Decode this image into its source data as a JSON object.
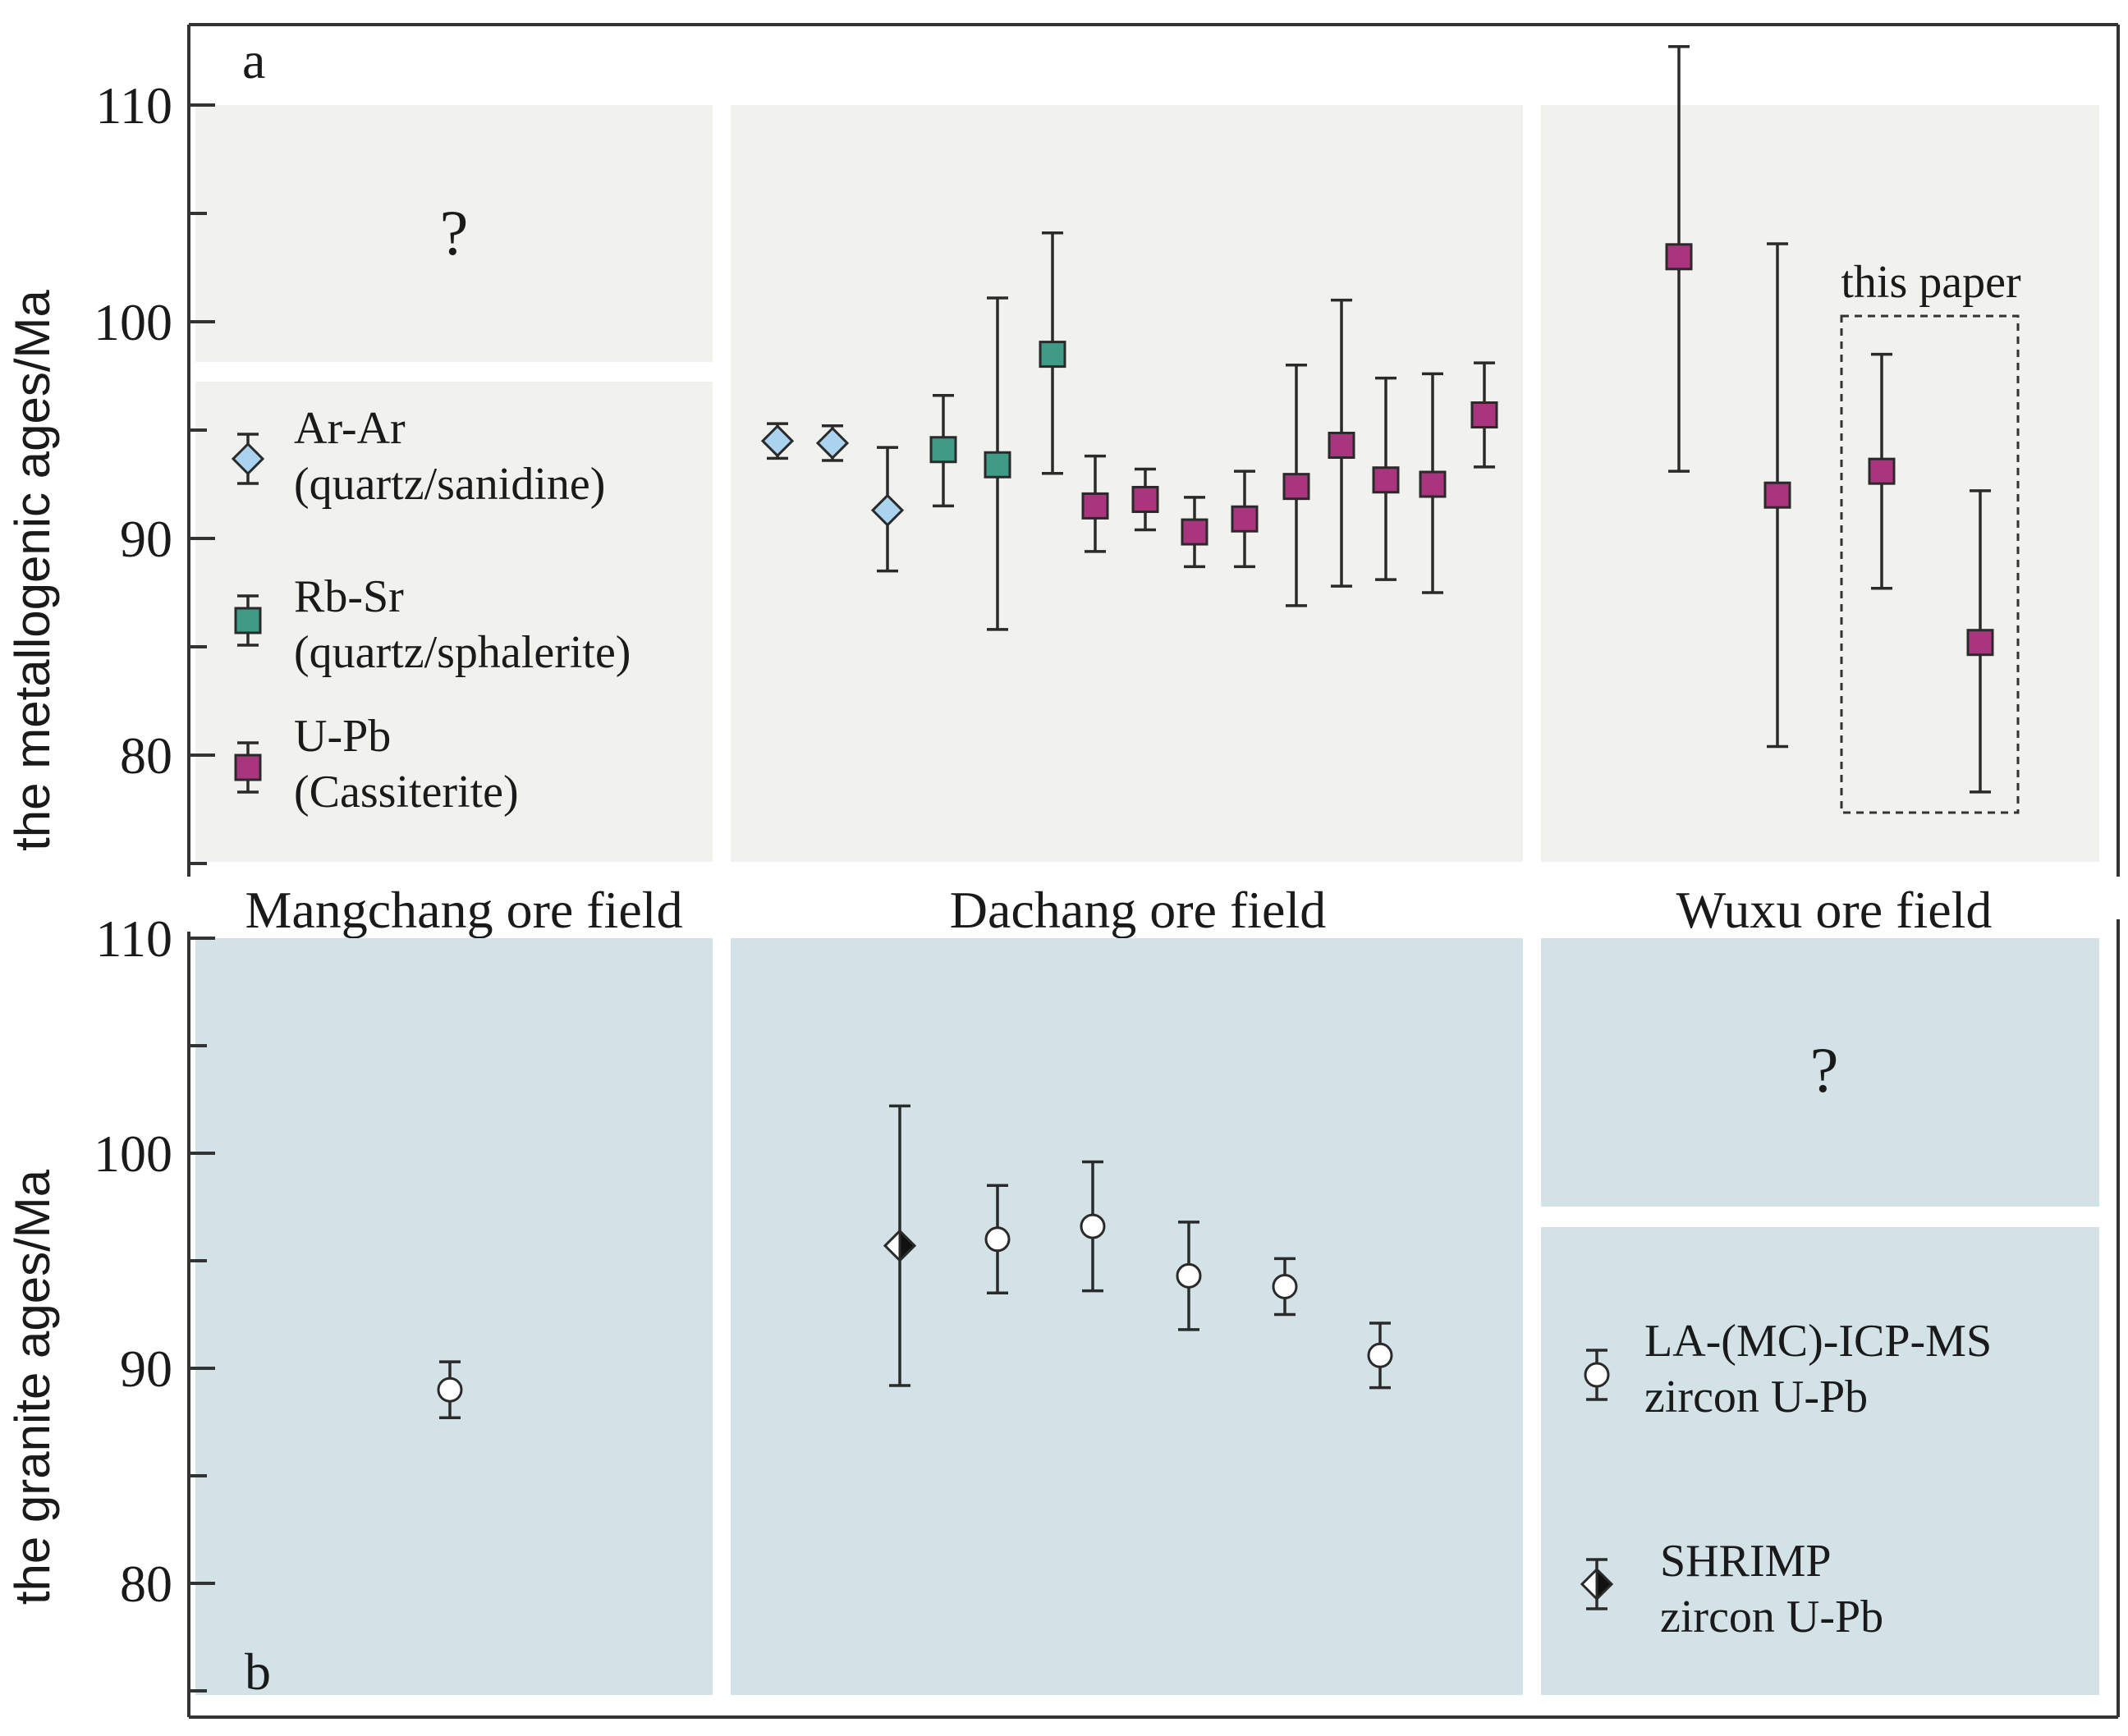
{
  "chart_data": [
    {
      "type": "scatter",
      "panel": "a",
      "ylabel": "the metallogenic ages/Ma",
      "ylim": [
        75,
        113
      ],
      "yticks": [
        80,
        90,
        100,
        110
      ],
      "grid": false,
      "sections": [
        {
          "name": "Mangchang ore field",
          "placeholder": "?"
        },
        {
          "name": "Dachang ore field"
        },
        {
          "name": "Wuxu ore field"
        }
      ],
      "legend": [
        {
          "label": "Ar-Ar",
          "sublabel": "(quartz/sanidine)",
          "marker": "diamond",
          "color": "#a9d3ee"
        },
        {
          "label": "Rb-Sr",
          "sublabel": "(quartz/sphalerite)",
          "marker": "square",
          "color": "#3f9a86"
        },
        {
          "label": "U-Pb",
          "sublabel": "(Cassiterite)",
          "marker": "square",
          "color": "#a8357d"
        }
      ],
      "annotation": "this paper",
      "series": [
        {
          "name": "Ar-Ar",
          "marker": "diamond",
          "color": "#a9d3ee",
          "section": "Dachang ore field",
          "points": [
            {
              "age": 94.5,
              "low": 93.7,
              "high": 95.3
            },
            {
              "age": 94.4,
              "low": 93.6,
              "high": 95.2
            },
            {
              "age": 91.3,
              "low": 88.5,
              "high": 94.2
            }
          ]
        },
        {
          "name": "Rb-Sr",
          "marker": "square",
          "color": "#3f9a86",
          "section": "Dachang ore field",
          "points": [
            {
              "age": 94.1,
              "low": 91.5,
              "high": 96.6
            },
            {
              "age": 93.4,
              "low": 85.8,
              "high": 101.1
            },
            {
              "age": 98.5,
              "low": 93.0,
              "high": 104.1
            }
          ]
        },
        {
          "name": "U-Pb",
          "marker": "square",
          "color": "#a8357d",
          "section": "Dachang ore field",
          "points": [
            {
              "age": 91.5,
              "low": 89.4,
              "high": 93.8
            },
            {
              "age": 91.8,
              "low": 90.4,
              "high": 93.2
            },
            {
              "age": 90.3,
              "low": 88.7,
              "high": 91.9
            },
            {
              "age": 90.9,
              "low": 88.7,
              "high": 93.1
            },
            {
              "age": 92.4,
              "low": 86.9,
              "high": 98.0
            },
            {
              "age": 94.3,
              "low": 87.8,
              "high": 101.0
            },
            {
              "age": 92.7,
              "low": 88.1,
              "high": 97.4
            },
            {
              "age": 92.5,
              "low": 87.5,
              "high": 97.6
            },
            {
              "age": 95.7,
              "low": 93.3,
              "high": 98.1
            }
          ]
        },
        {
          "name": "U-Pb",
          "marker": "square",
          "color": "#a8357d",
          "section": "Wuxu ore field",
          "points": [
            {
              "age": 103.0,
              "low": 93.1,
              "high": 112.7
            },
            {
              "age": 92.0,
              "low": 80.4,
              "high": 103.6
            },
            {
              "age": 93.1,
              "low": 87.7,
              "high": 98.5
            },
            {
              "age": 85.2,
              "low": 78.3,
              "high": 92.2
            }
          ]
        }
      ]
    },
    {
      "type": "scatter",
      "panel": "b",
      "ylabel": "the granite ages/Ma",
      "ylim": [
        75,
        111
      ],
      "yticks": [
        80,
        90,
        100,
        110
      ],
      "grid": false,
      "sections": [
        {
          "name": "Mangchang ore field"
        },
        {
          "name": "Dachang ore field"
        },
        {
          "name": "Wuxu ore field",
          "placeholder": "?"
        }
      ],
      "legend": [
        {
          "label": "LA-(MC)-ICP-MS",
          "sublabel": "zircon U-Pb",
          "marker": "circle"
        },
        {
          "label": "SHRIMP",
          "sublabel": "zircon U-Pb",
          "marker": "half-diamond"
        }
      ],
      "series": [
        {
          "name": "LA-(MC)-ICP-MS",
          "marker": "circle",
          "section": "Mangchang ore field",
          "points": [
            {
              "age": 89.0,
              "low": 87.7,
              "high": 90.3
            }
          ]
        },
        {
          "name": "SHRIMP",
          "marker": "half-diamond",
          "section": "Dachang ore field",
          "points": [
            {
              "age": 95.7,
              "low": 89.2,
              "high": 102.2
            }
          ]
        },
        {
          "name": "LA-(MC)-ICP-MS",
          "marker": "circle",
          "section": "Dachang ore field",
          "points": [
            {
              "age": 96.0,
              "low": 93.5,
              "high": 98.5
            },
            {
              "age": 96.6,
              "low": 93.6,
              "high": 99.6
            },
            {
              "age": 94.3,
              "low": 91.8,
              "high": 96.8
            },
            {
              "age": 93.8,
              "low": 92.5,
              "high": 95.1
            },
            {
              "age": 90.6,
              "low": 89.1,
              "high": 92.1
            }
          ]
        }
      ]
    }
  ]
}
